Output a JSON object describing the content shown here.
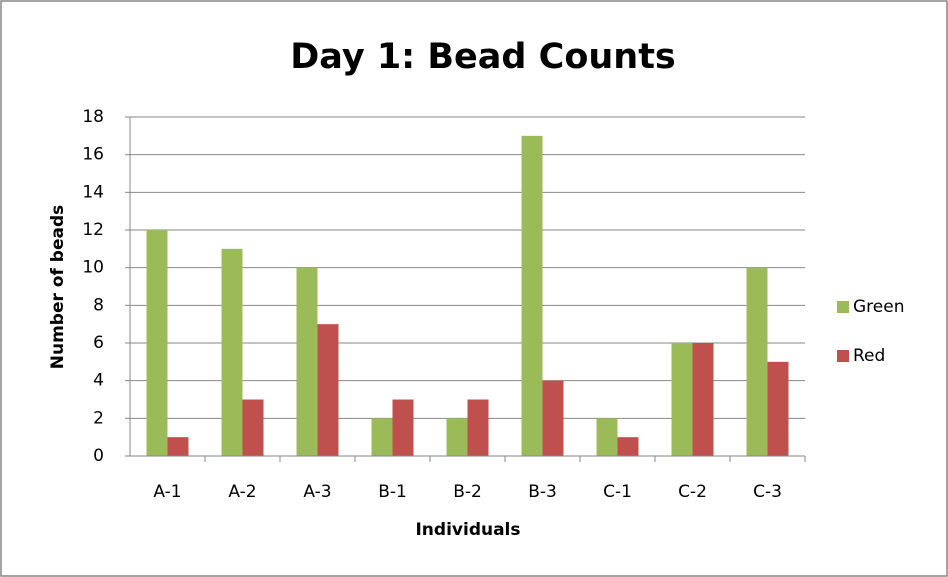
{
  "chart_data": {
    "type": "bar",
    "title": "Day 1: Bead Counts",
    "xlabel": "Individuals",
    "ylabel": "Number of beads",
    "categories": [
      "A-1",
      "A-2",
      "A-3",
      "B-1",
      "B-2",
      "B-3",
      "C-1",
      "C-2",
      "C-3"
    ],
    "series": [
      {
        "name": "Green",
        "color": "#9bbb59",
        "values": [
          12,
          11,
          10,
          2,
          2,
          17,
          2,
          6,
          10
        ]
      },
      {
        "name": "Red",
        "color": "#c0504d",
        "values": [
          1,
          3,
          7,
          3,
          3,
          4,
          1,
          6,
          5
        ]
      }
    ],
    "ylim": [
      0,
      18
    ],
    "yticks": [
      0,
      2,
      4,
      6,
      8,
      10,
      12,
      14,
      16,
      18
    ],
    "grid": true,
    "legend": "right"
  }
}
